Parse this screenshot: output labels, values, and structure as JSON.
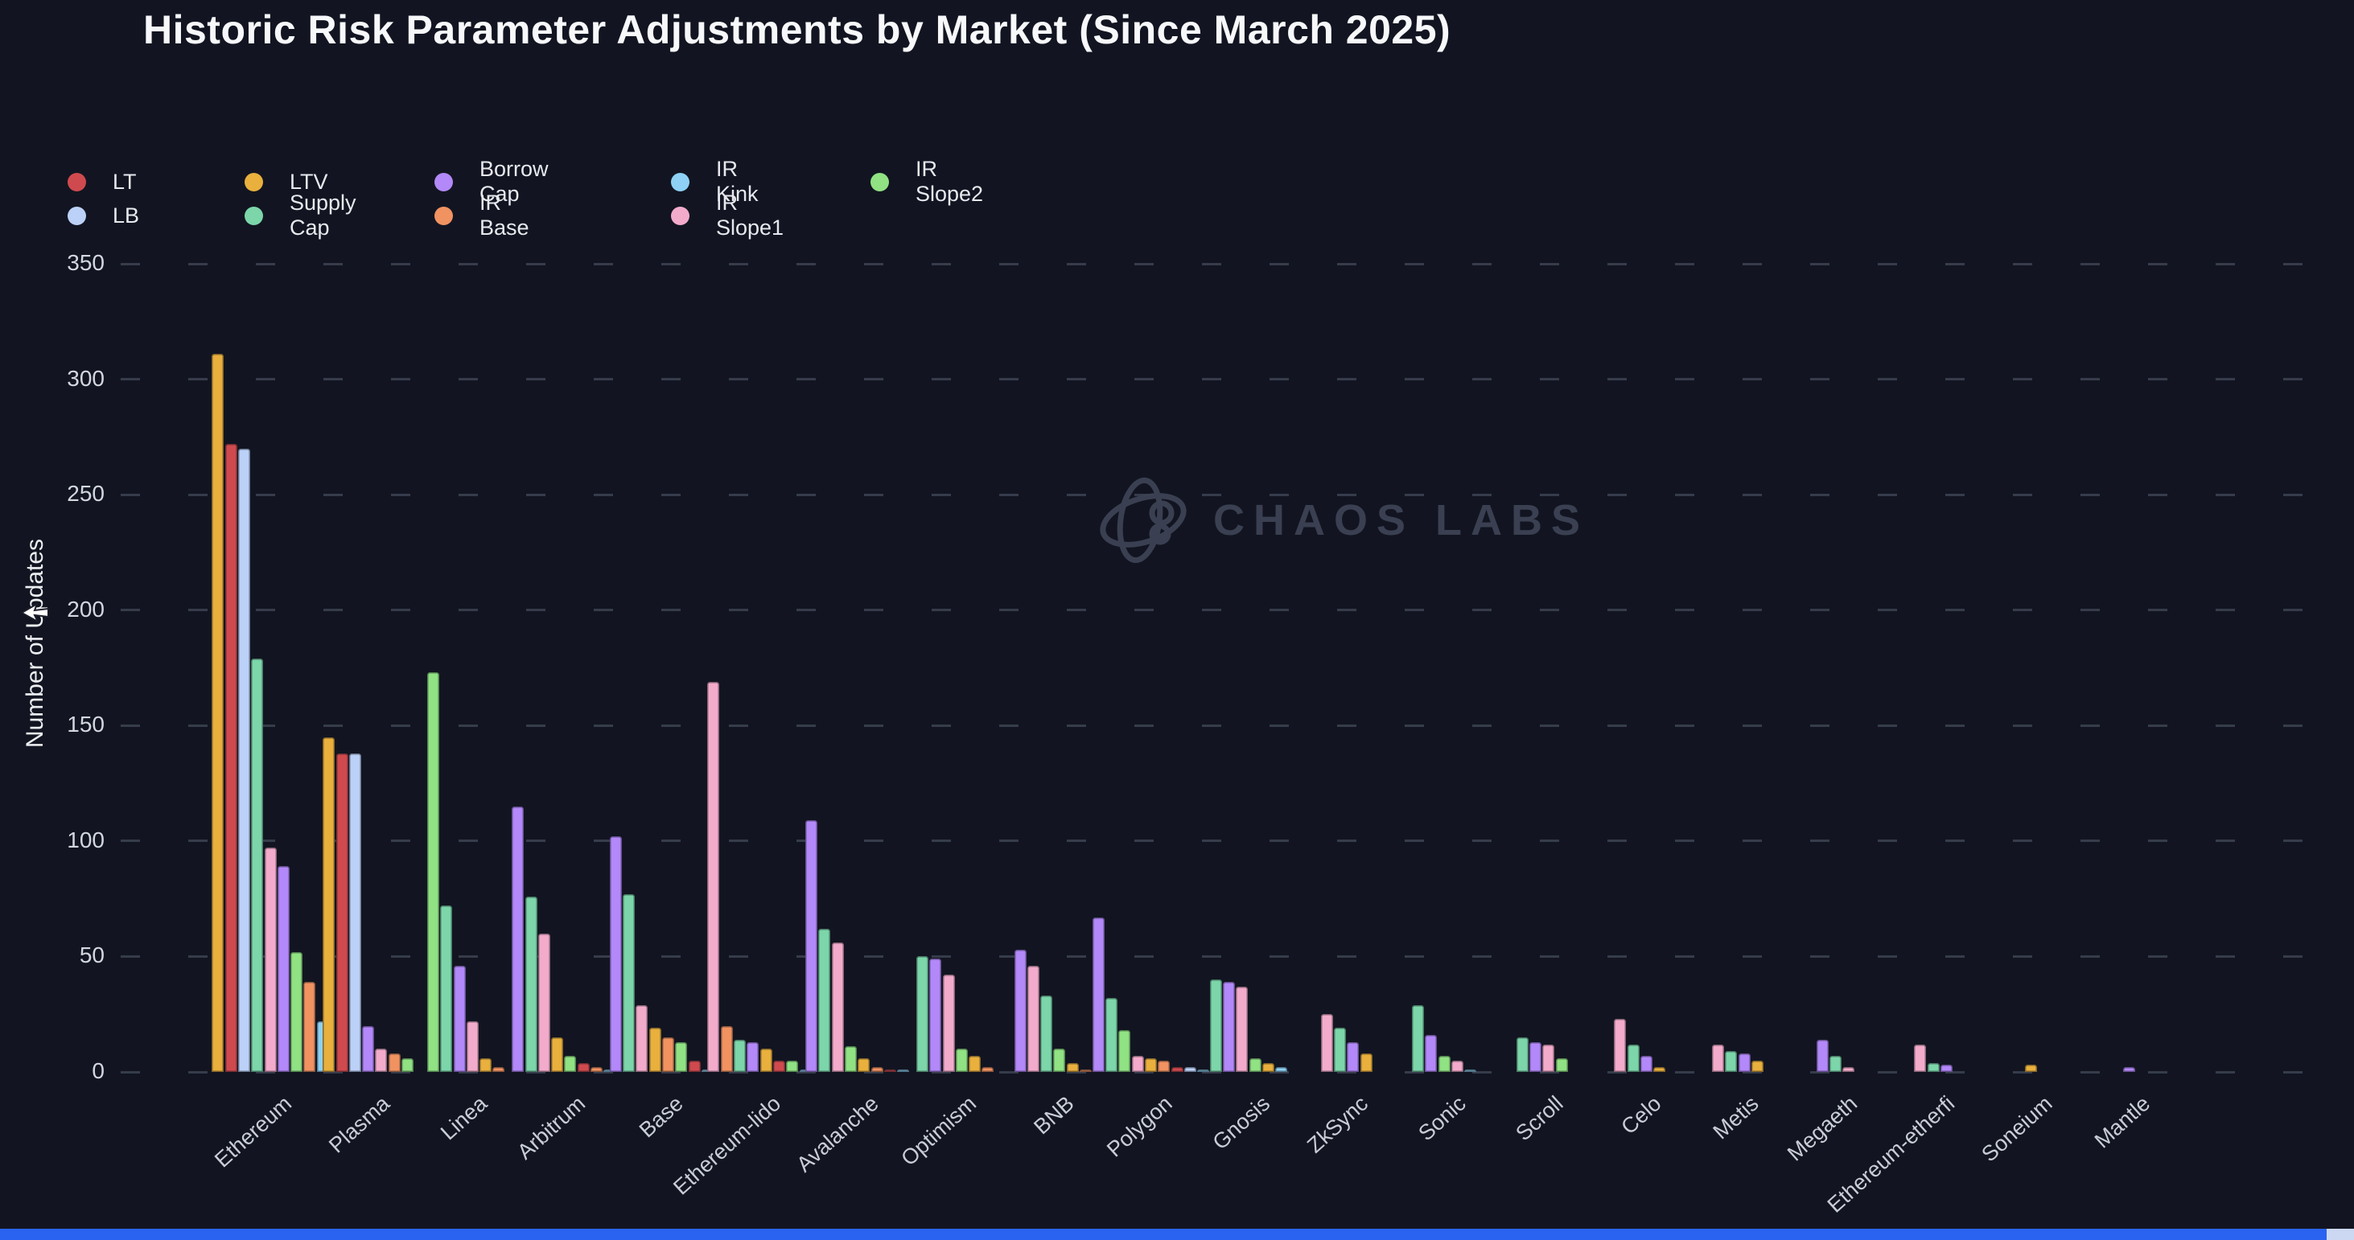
{
  "page": {
    "background": "#121521",
    "title": "Historic Risk Parameter Adjustments by Market (Since March 2025)"
  },
  "legend": {
    "rows": [
      [
        "LT",
        "LTV",
        "Borrow Cap",
        "IR Kink",
        "IR Slope2"
      ],
      [
        "LB",
        "Supply Cap",
        "IR Base",
        "IR Slope1"
      ]
    ]
  },
  "y_axis": {
    "label": "Number of Updates",
    "ticks": [
      350,
      300,
      250,
      200,
      150,
      100,
      50,
      0
    ]
  },
  "watermark": {
    "text": "CHAOS LABS",
    "color": "#3d4354"
  },
  "footer": {
    "bar_color": "#2a63f0",
    "corner_color": "#ccd8f1"
  },
  "chart_data": {
    "type": "bar",
    "title": "Historic Risk Parameter Adjustments by Market (Since March 2025)",
    "xlabel": "",
    "ylabel": "Number of Updates",
    "ylim": [
      0,
      350
    ],
    "grid": "horizontal-dashed",
    "legend_position": "top-left",
    "group_sort": "descending-within-group",
    "categories": [
      "Ethereum",
      "Plasma",
      "Linea",
      "Arbitrum",
      "Base",
      "Ethereum-lido",
      "Avalanche",
      "Optimism",
      "BNB",
      "Polygon",
      "Gnosis",
      "ZkSync",
      "Sonic",
      "Scroll",
      "Celo",
      "Metis",
      "Megaeth",
      "Ethereum-etherfi",
      "Soneium",
      "Mantle"
    ],
    "series": [
      {
        "name": "LT",
        "color": "#cf4a4e",
        "values": [
          272,
          138,
          0,
          4,
          5,
          5,
          1,
          0,
          0,
          2,
          0,
          0,
          0,
          0,
          0,
          0,
          0,
          0,
          0,
          0
        ]
      },
      {
        "name": "LTV",
        "color": "#e9b03d",
        "values": [
          311,
          145,
          6,
          15,
          19,
          10,
          6,
          7,
          4,
          6,
          4,
          8,
          0,
          0,
          2,
          5,
          0,
          0,
          3,
          0
        ]
      },
      {
        "name": "Borrow Cap",
        "color": "#b388f9",
        "values": [
          89,
          20,
          46,
          115,
          102,
          13,
          109,
          49,
          53,
          67,
          39,
          13,
          16,
          13,
          7,
          8,
          14,
          3,
          0,
          2
        ]
      },
      {
        "name": "IR Kink",
        "color": "#8ed1f5",
        "values": [
          22,
          0,
          0,
          1,
          1,
          1,
          1,
          0,
          0,
          1,
          2,
          0,
          1,
          0,
          0,
          0,
          0,
          0,
          0,
          0
        ]
      },
      {
        "name": "IR Slope2",
        "color": "#90e283",
        "values": [
          52,
          6,
          173,
          7,
          13,
          5,
          11,
          10,
          10,
          18,
          6,
          0,
          7,
          6,
          0,
          0,
          0,
          0,
          0,
          0
        ]
      },
      {
        "name": "LB",
        "color": "#bcd1f7",
        "values": [
          270,
          138,
          0,
          0,
          0,
          0,
          0,
          0,
          0,
          2,
          0,
          0,
          0,
          0,
          0,
          0,
          0,
          0,
          0,
          0
        ]
      },
      {
        "name": "Supply Cap",
        "color": "#7cd6aa",
        "values": [
          179,
          0,
          72,
          76,
          77,
          14,
          62,
          50,
          33,
          32,
          40,
          19,
          29,
          15,
          12,
          9,
          7,
          4,
          0,
          0
        ]
      },
      {
        "name": "IR Base",
        "color": "#f19261",
        "values": [
          39,
          8,
          2,
          2,
          15,
          20,
          2,
          2,
          1,
          5,
          0,
          0,
          0,
          0,
          0,
          0,
          0,
          0,
          0,
          0
        ]
      },
      {
        "name": "IR Slope1",
        "color": "#f3abcb",
        "values": [
          97,
          10,
          22,
          60,
          29,
          169,
          56,
          42,
          46,
          7,
          37,
          25,
          5,
          12,
          23,
          12,
          2,
          12,
          0,
          0
        ]
      }
    ]
  }
}
